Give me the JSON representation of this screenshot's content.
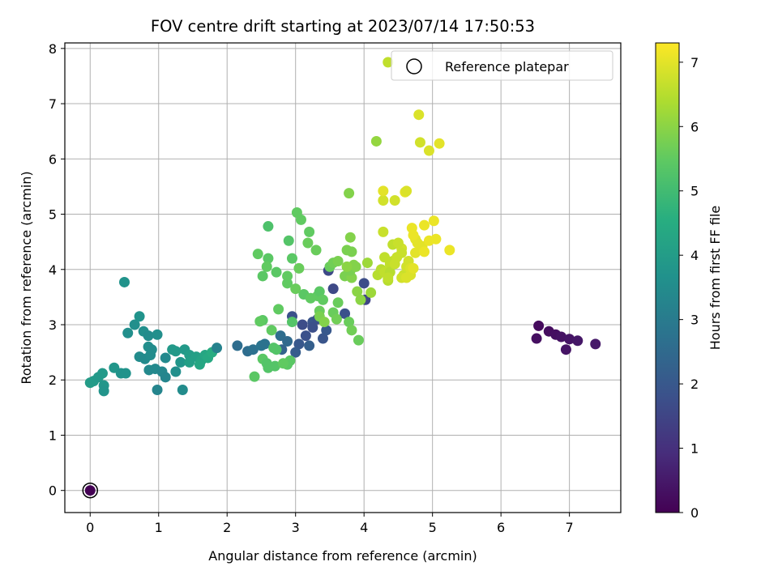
{
  "chart_data": {
    "type": "scatter",
    "title": "FOV centre drift starting at 2023/07/14 17:50:53",
    "xlabel": "Angular distance from reference (arcmin)",
    "ylabel": "Rotation from reference (arcmin)",
    "xlim": [
      -0.37,
      7.75
    ],
    "ylim": [
      -0.4,
      8.1
    ],
    "xticks": [
      0,
      1,
      2,
      3,
      4,
      5,
      6,
      7
    ],
    "yticks": [
      0,
      1,
      2,
      3,
      4,
      5,
      6,
      7,
      8
    ],
    "grid": true,
    "legend": {
      "placement": "top-right",
      "entries": [
        "Reference platepar"
      ]
    },
    "reference_point": {
      "x": 0,
      "y": 0,
      "label": "Reference platepar"
    },
    "colorbar": {
      "label": "Hours from first FF file",
      "min": 0,
      "max": 7.3,
      "ticks": [
        0,
        1,
        2,
        3,
        4,
        5,
        6,
        7
      ],
      "colormap": "viridis"
    },
    "points": [
      [
        6.55,
        2.98,
        0.2
      ],
      [
        6.7,
        2.88,
        0.25
      ],
      [
        6.8,
        2.82,
        0.3
      ],
      [
        6.88,
        2.78,
        0.35
      ],
      [
        6.52,
        2.75,
        0.3
      ],
      [
        7.0,
        2.74,
        0.4
      ],
      [
        7.12,
        2.71,
        0.45
      ],
      [
        6.95,
        2.55,
        0.4
      ],
      [
        7.38,
        2.65,
        0.5
      ],
      [
        3.1,
        3.0,
        1.7
      ],
      [
        3.15,
        2.8,
        1.8
      ],
      [
        3.25,
        3.05,
        1.9
      ],
      [
        3.05,
        2.65,
        2.0
      ],
      [
        3.32,
        3.1,
        1.8
      ],
      [
        3.4,
        2.75,
        1.9
      ],
      [
        3.45,
        2.9,
        2.0
      ],
      [
        3.25,
        2.95,
        1.75
      ],
      [
        3.55,
        3.65,
        1.6
      ],
      [
        3.48,
        3.98,
        1.6
      ],
      [
        3.72,
        3.2,
        1.8
      ],
      [
        4.0,
        3.75,
        1.7
      ],
      [
        4.02,
        3.45,
        1.5
      ],
      [
        2.95,
        3.15,
        1.8
      ],
      [
        3.0,
        2.5,
        2.1
      ],
      [
        3.2,
        2.62,
        2.2
      ],
      [
        2.8,
        2.55,
        2.3
      ],
      [
        2.15,
        2.62,
        2.6
      ],
      [
        2.3,
        2.52,
        2.6
      ],
      [
        2.38,
        2.55,
        2.7
      ],
      [
        2.5,
        2.62,
        2.8
      ],
      [
        2.55,
        2.65,
        2.75
      ],
      [
        2.78,
        2.8,
        2.6
      ],
      [
        2.88,
        2.7,
        2.5
      ],
      [
        0.5,
        3.77,
        3.7
      ],
      [
        0.55,
        2.85,
        3.6
      ],
      [
        0.65,
        3.0,
        3.6
      ],
      [
        0.72,
        3.15,
        3.7
      ],
      [
        0.78,
        2.88,
        3.6
      ],
      [
        0.85,
        2.8,
        3.5
      ],
      [
        0.72,
        2.42,
        3.5
      ],
      [
        0.8,
        2.38,
        3.45
      ],
      [
        0.88,
        2.45,
        3.5
      ],
      [
        0.98,
        2.82,
        3.6
      ],
      [
        0.85,
        2.6,
        3.55
      ],
      [
        0.9,
        2.55,
        3.5
      ],
      [
        0.86,
        2.18,
        3.4
      ],
      [
        0.95,
        2.2,
        3.4
      ],
      [
        1.05,
        2.15,
        3.35
      ],
      [
        1.1,
        2.05,
        3.3
      ],
      [
        1.1,
        2.4,
        3.4
      ],
      [
        0.98,
        1.82,
        3.3
      ],
      [
        1.2,
        2.55,
        3.9
      ],
      [
        1.25,
        2.52,
        3.9
      ],
      [
        1.32,
        2.32,
        3.8
      ],
      [
        1.38,
        2.55,
        3.9
      ],
      [
        1.45,
        2.45,
        4.0
      ],
      [
        1.55,
        2.42,
        4.1
      ],
      [
        1.62,
        2.35,
        4.2
      ],
      [
        1.45,
        2.32,
        4.1
      ],
      [
        1.68,
        2.45,
        4.3
      ],
      [
        1.72,
        2.4,
        4.4
      ],
      [
        1.78,
        2.5,
        4.5
      ],
      [
        1.6,
        2.28,
        4.3
      ],
      [
        1.25,
        2.15,
        3.6
      ],
      [
        1.35,
        1.82,
        3.5
      ],
      [
        0.0,
        1.95,
        4.0
      ],
      [
        0.05,
        1.98,
        3.95
      ],
      [
        0.12,
        2.05,
        3.9
      ],
      [
        0.18,
        2.12,
        3.9
      ],
      [
        0.2,
        1.9,
        3.8
      ],
      [
        0.2,
        1.8,
        3.75
      ],
      [
        0.35,
        2.22,
        3.8
      ],
      [
        0.45,
        2.12,
        3.7
      ],
      [
        0.52,
        2.12,
        3.7
      ],
      [
        1.85,
        2.58,
        3.2
      ],
      [
        2.4,
        2.06,
        5.4
      ],
      [
        2.52,
        2.38,
        5.4
      ],
      [
        2.58,
        2.3,
        5.3
      ],
      [
        2.6,
        2.22,
        5.3
      ],
      [
        2.7,
        2.25,
        5.3
      ],
      [
        2.72,
        2.55,
        5.3
      ],
      [
        2.68,
        2.58,
        5.3
      ],
      [
        2.88,
        2.28,
        5.4
      ],
      [
        2.92,
        2.35,
        5.4
      ],
      [
        2.82,
        2.3,
        5.5
      ],
      [
        2.65,
        2.9,
        5.5
      ],
      [
        2.52,
        3.08,
        5.4
      ],
      [
        2.48,
        3.06,
        5.5
      ],
      [
        2.75,
        3.28,
        5.5
      ],
      [
        2.95,
        3.05,
        5.3
      ],
      [
        3.12,
        3.55,
        5.4
      ],
      [
        3.22,
        3.48,
        5.5
      ],
      [
        3.32,
        3.52,
        5.5
      ],
      [
        3.35,
        3.6,
        5.4
      ],
      [
        3.4,
        3.45,
        5.5
      ],
      [
        3.35,
        3.25,
        5.6
      ],
      [
        3.55,
        3.22,
        5.6
      ],
      [
        3.6,
        3.1,
        5.7
      ],
      [
        3.62,
        3.4,
        5.6
      ],
      [
        3.78,
        3.05,
        5.6
      ],
      [
        3.82,
        2.9,
        5.7
      ],
      [
        3.92,
        2.72,
        5.6
      ],
      [
        2.45,
        4.28,
        5.5
      ],
      [
        2.6,
        4.2,
        5.4
      ],
      [
        2.58,
        4.05,
        5.5
      ],
      [
        2.52,
        3.88,
        5.4
      ],
      [
        2.72,
        3.95,
        5.4
      ],
      [
        2.88,
        3.88,
        5.5
      ],
      [
        2.88,
        3.75,
        5.5
      ],
      [
        2.95,
        4.2,
        5.4
      ],
      [
        2.9,
        4.52,
        5.3
      ],
      [
        3.0,
        3.65,
        5.6
      ],
      [
        3.05,
        4.02,
        5.6
      ],
      [
        3.18,
        4.48,
        5.6
      ],
      [
        3.2,
        4.68,
        5.5
      ],
      [
        3.3,
        4.35,
        5.6
      ],
      [
        3.5,
        4.05,
        5.6
      ],
      [
        3.55,
        4.12,
        5.7
      ],
      [
        3.62,
        4.15,
        5.8
      ],
      [
        3.75,
        4.35,
        5.8
      ],
      [
        3.8,
        4.58,
        5.9
      ],
      [
        3.82,
        4.32,
        5.8
      ],
      [
        3.85,
        4.08,
        5.9
      ],
      [
        3.72,
        3.88,
        5.8
      ],
      [
        3.82,
        3.85,
        5.9
      ],
      [
        3.8,
        3.98,
        5.8
      ],
      [
        3.88,
        4.05,
        5.9
      ],
      [
        3.9,
        3.6,
        6.0
      ],
      [
        3.95,
        3.45,
        6.0
      ],
      [
        3.75,
        4.05,
        6.0
      ],
      [
        3.02,
        5.03,
        5.5
      ],
      [
        3.08,
        4.9,
        5.5
      ],
      [
        2.6,
        4.78,
        5.2
      ],
      [
        3.78,
        5.38,
        5.9
      ],
      [
        4.18,
        6.32,
        6.1
      ],
      [
        3.35,
        3.15,
        5.8
      ],
      [
        3.42,
        3.05,
        5.9
      ],
      [
        4.05,
        4.12,
        6.2
      ],
      [
        4.1,
        3.58,
        6.2
      ],
      [
        4.2,
        3.9,
        6.5
      ],
      [
        4.25,
        4.0,
        6.5
      ],
      [
        4.3,
        3.95,
        6.6
      ],
      [
        4.35,
        3.8,
        6.5
      ],
      [
        4.38,
        4.1,
        6.6
      ],
      [
        4.42,
        4.15,
        6.6
      ],
      [
        4.48,
        4.22,
        6.7
      ],
      [
        4.55,
        4.38,
        6.8
      ],
      [
        4.38,
        3.95,
        6.5
      ],
      [
        4.42,
        4.45,
        6.6
      ],
      [
        4.5,
        4.48,
        6.7
      ],
      [
        4.3,
        4.22,
        6.6
      ],
      [
        4.28,
        4.68,
        6.7
      ],
      [
        4.35,
        3.85,
        6.6
      ],
      [
        4.55,
        4.3,
        6.7
      ],
      [
        4.58,
        3.9,
        6.7
      ],
      [
        4.62,
        4.05,
        6.8
      ],
      [
        4.65,
        4.15,
        6.8
      ],
      [
        4.55,
        3.85,
        6.8
      ],
      [
        4.62,
        3.85,
        6.9
      ],
      [
        4.68,
        3.9,
        6.9
      ],
      [
        4.68,
        4.02,
        6.9
      ],
      [
        4.72,
        4.02,
        7.0
      ],
      [
        4.75,
        4.3,
        7.0
      ],
      [
        4.78,
        4.48,
        7.0
      ],
      [
        4.75,
        4.55,
        7.0
      ],
      [
        4.72,
        4.62,
        7.1
      ],
      [
        4.7,
        4.75,
        7.1
      ],
      [
        4.85,
        4.42,
        7.0
      ],
      [
        4.88,
        4.32,
        7.1
      ],
      [
        4.95,
        4.52,
        7.1
      ],
      [
        5.05,
        4.55,
        7.1
      ],
      [
        5.02,
        4.88,
        7.1
      ],
      [
        4.88,
        4.8,
        7.1
      ],
      [
        4.6,
        5.4,
        7.0
      ],
      [
        4.62,
        5.42,
        6.9
      ],
      [
        4.45,
        5.25,
        6.8
      ],
      [
        4.28,
        5.25,
        6.8
      ],
      [
        4.28,
        5.42,
        7.0
      ],
      [
        4.45,
        4.1,
        6.7
      ],
      [
        4.35,
        7.75,
        6.6
      ],
      [
        4.8,
        6.8,
        6.9
      ],
      [
        4.82,
        6.3,
        6.8
      ],
      [
        4.95,
        6.15,
        6.9
      ],
      [
        5.1,
        6.28,
        7.0
      ],
      [
        5.25,
        4.35,
        7.1
      ]
    ]
  }
}
